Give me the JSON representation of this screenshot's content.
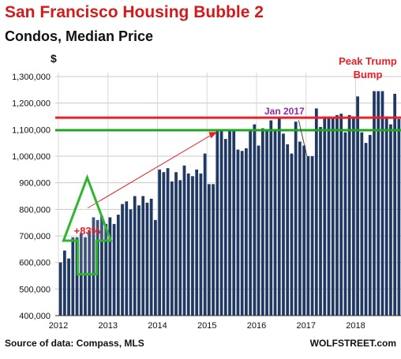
{
  "chart_data": {
    "type": "bar",
    "title": "San Francisco Housing Bubble 2",
    "subtitle": "Condos, Median Price",
    "ylabel": "$",
    "ylim": [
      400000,
      1350000
    ],
    "y_ticks": [
      400000,
      500000,
      600000,
      700000,
      800000,
      900000,
      1000000,
      1100000,
      1200000,
      1300000
    ],
    "y_tick_labels": [
      "400,000",
      "500,000",
      "600,000",
      "700,000",
      "800,000",
      "900,000",
      "1,000,000",
      "1,100,000",
      "1,200,000",
      "1,300,000"
    ],
    "x_tick_labels": [
      "2012",
      "2013",
      "2014",
      "2015",
      "2016",
      "2017",
      "2018"
    ],
    "start_month": "2012-01",
    "values": [
      600000,
      645000,
      615000,
      695000,
      695000,
      710000,
      695000,
      720000,
      770000,
      760000,
      775000,
      745000,
      770000,
      745000,
      780000,
      820000,
      830000,
      800000,
      850000,
      815000,
      850000,
      825000,
      840000,
      760000,
      950000,
      940000,
      955000,
      905000,
      940000,
      910000,
      965000,
      935000,
      925000,
      950000,
      935000,
      1010000,
      895000,
      895000,
      1100000,
      1100000,
      1065000,
      1095000,
      1100000,
      1025000,
      1020000,
      1030000,
      1095000,
      1120000,
      1040000,
      1105000,
      1100000,
      1135000,
      1100000,
      1145000,
      1085000,
      1045000,
      1010000,
      1130000,
      1055000,
      1040000,
      1000000,
      1000000,
      1180000,
      1110000,
      1150000,
      1150000,
      1145000,
      1155000,
      1160000,
      1090000,
      1155000,
      1150000,
      1225000,
      1090000,
      1050000,
      1080000,
      1245000,
      1245000,
      1245000,
      1150000,
      1120000,
      1235000,
      1140000
    ],
    "reference_lines": [
      {
        "label": "Peak Trump Bump",
        "value": 1145000,
        "color": "#e8202a"
      },
      {
        "label": "",
        "value": 1098000,
        "color": "#1ea81e"
      }
    ],
    "annotations": [
      {
        "text": "+83%",
        "color": "#e8202a"
      },
      {
        "text": "Jan 2017",
        "color": "#9a2aa8"
      },
      {
        "text": "Peak Trump Bump",
        "color": "#e8202a"
      }
    ],
    "bar_color": "#1f3864",
    "grid": true
  },
  "source": "Source of data: Compass, MLS",
  "brand": "WOLFSTREET.com"
}
